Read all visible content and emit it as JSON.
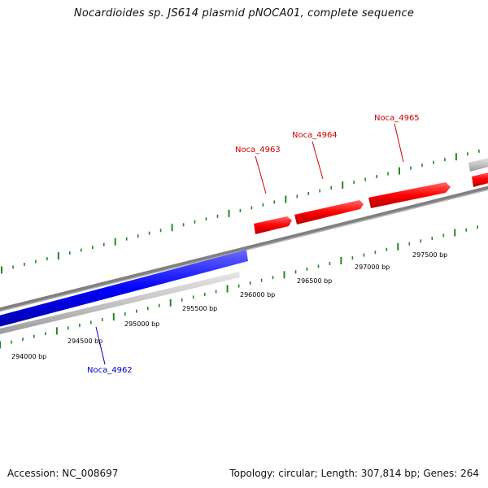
{
  "title": "Nocardioides sp. JS614 plasmid pNOCA01, complete sequence",
  "footer": {
    "accession": "Accession: NC_008697",
    "summary": "Topology: circular; Length: 307,814 bp; Genes: 264"
  },
  "colors": {
    "forward_gene": "#ff0000",
    "reverse_gene": "#0000ff",
    "tick": "#1e8a1e",
    "backbone": "#808080",
    "grey_band": "#c4c4c4"
  },
  "ruler": {
    "unit": "bp",
    "labels": [
      "294000 bp",
      "294500 bp",
      "295000 bp",
      "295500 bp",
      "296000 bp",
      "296500 bp",
      "297000 bp",
      "297500 bp"
    ]
  },
  "genes": [
    {
      "label": "Noca_4962",
      "strand": "reverse"
    },
    {
      "label": "Noca_4963",
      "strand": "forward"
    },
    {
      "label": "Noca_4964",
      "strand": "forward"
    },
    {
      "label": "Noca_4965",
      "strand": "forward"
    }
  ]
}
